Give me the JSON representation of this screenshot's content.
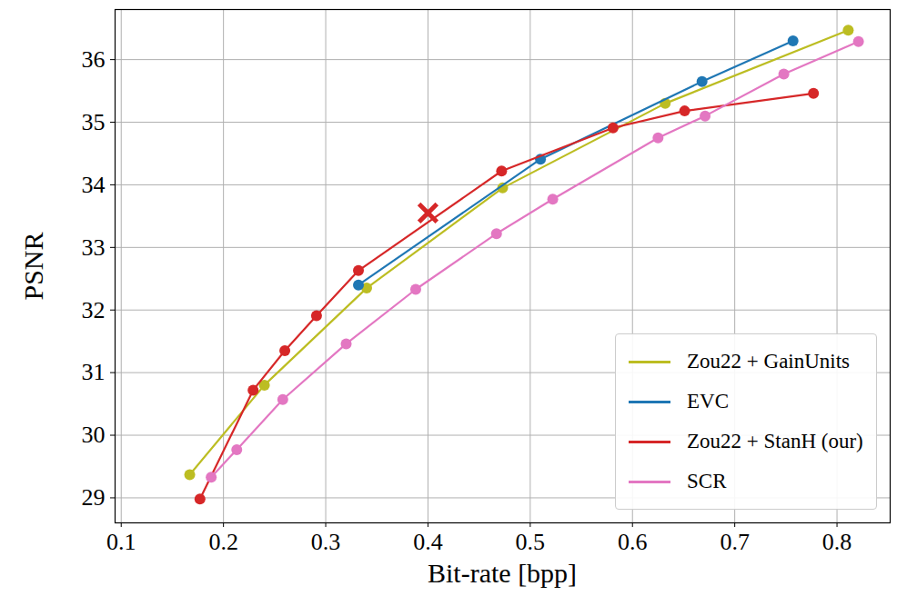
{
  "chart_data": {
    "type": "line",
    "x_label": "Bit-rate [bpp]",
    "y_label": "PSNR",
    "xlim": [
      0.094,
      0.852
    ],
    "ylim": [
      28.6,
      36.8
    ],
    "xticks": [
      0.1,
      0.2,
      0.3,
      0.4,
      0.5,
      0.6,
      0.7,
      0.8
    ],
    "yticks": [
      29,
      30,
      31,
      32,
      33,
      34,
      35,
      36
    ],
    "grid": true,
    "legend": "lower right",
    "series": [
      {
        "name": "Zou22 + GainUnits",
        "color": "#bcbd22",
        "marker": "circle",
        "x": [
          0.167,
          0.24,
          0.34,
          0.473,
          0.632,
          0.811
        ],
        "values": [
          29.37,
          30.8,
          32.35,
          33.95,
          35.3,
          36.47
        ]
      },
      {
        "name": "EVC",
        "color": "#1f77b4",
        "marker": "circle",
        "x": [
          0.332,
          0.51,
          0.668,
          0.757
        ],
        "values": [
          32.4,
          34.41,
          35.65,
          36.3
        ]
      },
      {
        "name": "Zou22 + StanH (our)",
        "color": "#d62728",
        "marker": "circle",
        "x": [
          0.177,
          0.229,
          0.26,
          0.291,
          0.332,
          0.472,
          0.581,
          0.651,
          0.777
        ],
        "values": [
          28.98,
          30.72,
          31.35,
          31.91,
          32.63,
          34.22,
          34.91,
          35.18,
          35.46
        ]
      },
      {
        "name": "SCR",
        "color": "#e377c2",
        "marker": "circle",
        "x": [
          0.188,
          0.213,
          0.258,
          0.32,
          0.388,
          0.467,
          0.522,
          0.625,
          0.671,
          0.748,
          0.821
        ],
        "values": [
          29.33,
          29.77,
          30.57,
          31.46,
          32.33,
          33.22,
          33.77,
          34.75,
          35.1,
          35.77,
          36.29
        ]
      },
      {
        "type": "scatter",
        "color": "#d62728",
        "marker": "x",
        "x": [
          0.4
        ],
        "values": [
          33.55
        ]
      }
    ]
  }
}
